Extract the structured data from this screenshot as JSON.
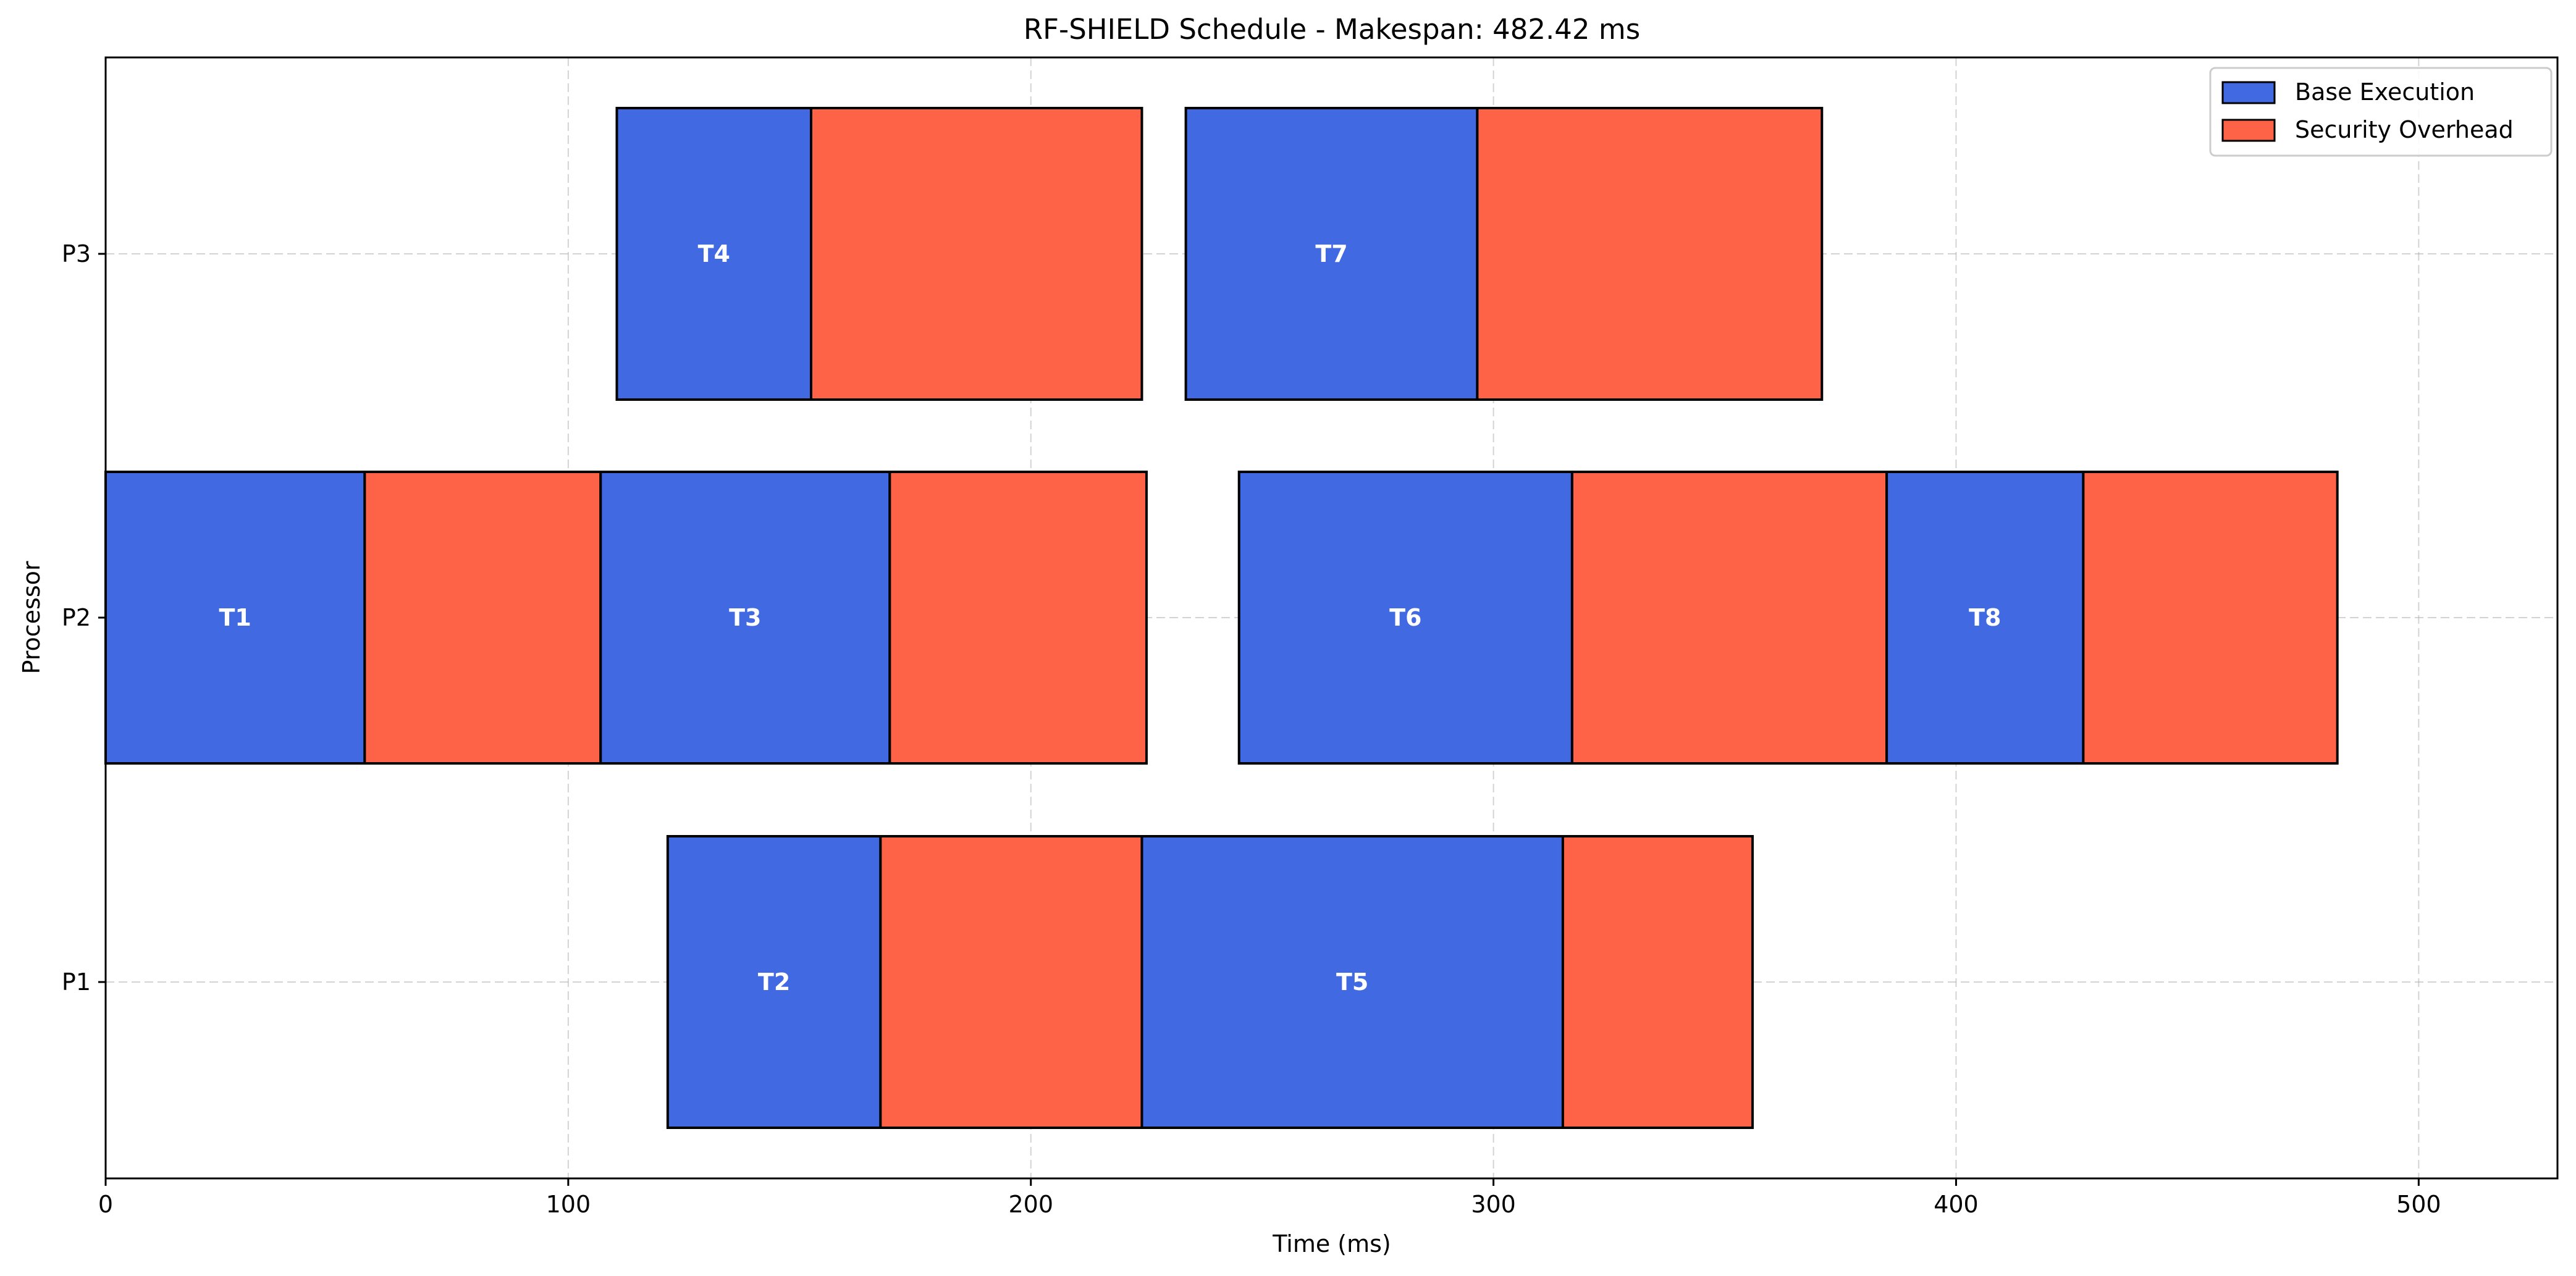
{
  "chart_data": {
    "type": "gantt",
    "title": "RF-SHIELD Schedule - Makespan: 482.42 ms",
    "xlabel": "Time (ms)",
    "ylabel": "Processor",
    "xlim": [
      0,
      530
    ],
    "xticks": [
      0,
      100,
      200,
      300,
      400,
      500
    ],
    "grid": true,
    "legend_position": "top-right",
    "colors": {
      "base": "#4169E1",
      "overhead": "#FF6347",
      "edge": "#000000"
    },
    "processors": [
      "P1",
      "P2",
      "P3"
    ],
    "legend": [
      {
        "label": "Base Execution",
        "color": "#4169E1"
      },
      {
        "label": "Security Overhead",
        "color": "#FF6347"
      }
    ],
    "tasks": [
      {
        "label": "T1",
        "processor": "P2",
        "start": 0,
        "base_end": 56,
        "end": 107
      },
      {
        "label": "T2",
        "processor": "P1",
        "start": 121.5,
        "base_end": 167.5,
        "end": 224
      },
      {
        "label": "T3",
        "processor": "P2",
        "start": 107,
        "base_end": 169.5,
        "end": 225
      },
      {
        "label": "T4",
        "processor": "P3",
        "start": 110.5,
        "base_end": 152.5,
        "end": 224
      },
      {
        "label": "T5",
        "processor": "P1",
        "start": 224,
        "base_end": 315,
        "end": 356
      },
      {
        "label": "T6",
        "processor": "P2",
        "start": 245,
        "base_end": 317,
        "end": 385
      },
      {
        "label": "T7",
        "processor": "P3",
        "start": 233.5,
        "base_end": 296.5,
        "end": 371
      },
      {
        "label": "T8",
        "processor": "P2",
        "start": 385,
        "base_end": 427.5,
        "end": 482.42
      }
    ]
  }
}
